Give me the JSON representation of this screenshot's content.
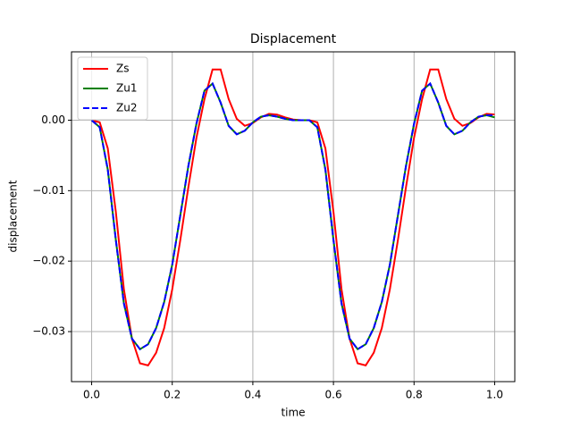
{
  "chart_data": {
    "type": "line",
    "title": "Displacement",
    "x_label": "time",
    "y_label": "displacement",
    "x": [
      0,
      0.02,
      0.04,
      0.06,
      0.08,
      0.1,
      0.12,
      0.14,
      0.16,
      0.18,
      0.2,
      0.22,
      0.24,
      0.26,
      0.28,
      0.3,
      0.32,
      0.34,
      0.36,
      0.38,
      0.4,
      0.42,
      0.44,
      0.46,
      0.48,
      0.5,
      0.52,
      0.54,
      0.56,
      0.58,
      0.6,
      0.62,
      0.64,
      0.66,
      0.68,
      0.7,
      0.72,
      0.74,
      0.76,
      0.78,
      0.8,
      0.82,
      0.84,
      0.86,
      0.88,
      0.9,
      0.92,
      0.94,
      0.96,
      0.98,
      1.0
    ],
    "series": [
      {
        "name": "Zs",
        "color": "#ff0000",
        "dash": false,
        "values": [
          0,
          -0.0003,
          -0.004,
          -0.013,
          -0.024,
          -0.031,
          -0.0345,
          -0.0348,
          -0.033,
          -0.0295,
          -0.024,
          -0.017,
          -0.0095,
          -0.0025,
          0.003,
          0.0072,
          0.0072,
          0.003,
          0.0002,
          -0.0008,
          -0.0004,
          0.0004,
          0.0009,
          0.0008,
          0.0004,
          0.0001,
          0,
          0,
          -0.0003,
          -0.004,
          -0.013,
          -0.024,
          -0.031,
          -0.0345,
          -0.0348,
          -0.033,
          -0.0295,
          -0.024,
          -0.017,
          -0.0095,
          -0.0025,
          0.003,
          0.0072,
          0.0072,
          0.003,
          0.0002,
          -0.0008,
          -0.0004,
          0.0004,
          0.0009,
          0.0008
        ]
      },
      {
        "name": "Zu1",
        "color": "#008000",
        "dash": false,
        "values": [
          0,
          -0.001,
          -0.007,
          -0.017,
          -0.026,
          -0.031,
          -0.0325,
          -0.0318,
          -0.0295,
          -0.0258,
          -0.0205,
          -0.0135,
          -0.0065,
          -0.0005,
          0.0042,
          0.0052,
          0.0025,
          -0.0008,
          -0.002,
          -0.0015,
          -0.0003,
          0.0005,
          0.0007,
          0.0005,
          0.0002,
          0,
          0,
          0,
          -0.001,
          -0.007,
          -0.017,
          -0.026,
          -0.031,
          -0.0325,
          -0.0318,
          -0.0295,
          -0.0258,
          -0.0205,
          -0.0135,
          -0.0065,
          -0.0005,
          0.0042,
          0.0052,
          0.0025,
          -0.0008,
          -0.002,
          -0.0015,
          -0.0003,
          0.0005,
          0.0007,
          0.0004
        ]
      },
      {
        "name": "Zu2",
        "color": "#0000ff",
        "dash": true,
        "values": [
          0,
          -0.001,
          -0.007,
          -0.017,
          -0.026,
          -0.031,
          -0.0325,
          -0.0318,
          -0.0295,
          -0.0258,
          -0.0205,
          -0.0135,
          -0.0065,
          -0.0005,
          0.0042,
          0.0052,
          0.0025,
          -0.0008,
          -0.002,
          -0.0015,
          -0.0003,
          0.0005,
          0.0007,
          0.0005,
          0.0002,
          0,
          0,
          0,
          -0.001,
          -0.007,
          -0.017,
          -0.026,
          -0.031,
          -0.0325,
          -0.0318,
          -0.0295,
          -0.0258,
          -0.0205,
          -0.0135,
          -0.0065,
          -0.0005,
          0.0042,
          0.0052,
          0.0025,
          -0.0008,
          -0.002,
          -0.0015,
          -0.0003,
          0.0005,
          0.0007,
          0.0007
        ]
      }
    ],
    "xlim": [
      -0.05,
      1.05
    ],
    "ylim": [
      -0.0371,
      0.0097
    ],
    "xticks": [
      {
        "value": 0,
        "label": "0.0"
      },
      0.2,
      0.4,
      0.6,
      0.8,
      {
        "value": 1,
        "label": "1.0"
      }
    ],
    "yticks": [
      {
        "value": -0.03,
        "label": "−0.03"
      },
      {
        "value": -0.02,
        "label": "−0.02"
      },
      {
        "value": -0.01,
        "label": "−0.01"
      },
      {
        "value": 0,
        "label": "0.00"
      }
    ],
    "grid": true,
    "legend": "upper-left"
  }
}
